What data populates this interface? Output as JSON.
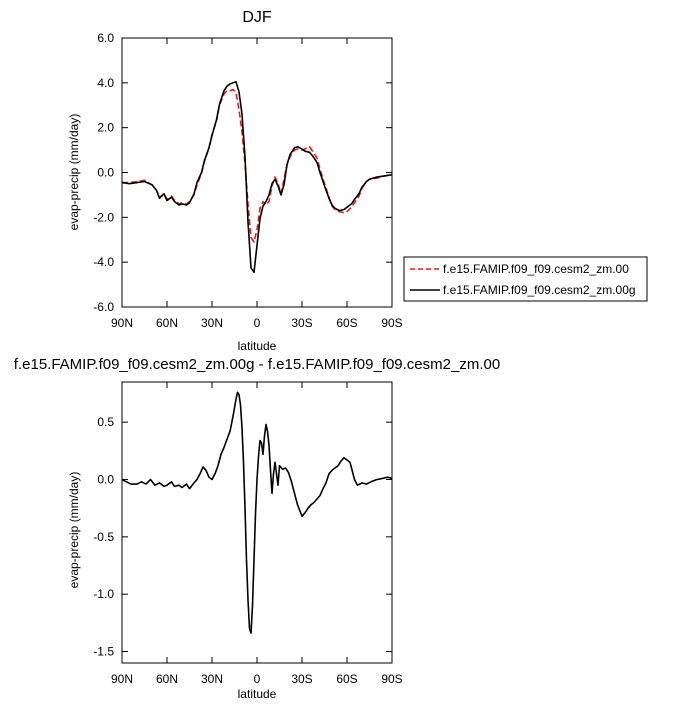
{
  "chart_data": [
    {
      "type": "line",
      "title": "DJF",
      "xlabel": "latitude",
      "ylabel": "evap-precip (mm/day)",
      "xlim": [
        90,
        -90
      ],
      "ylim": [
        -6,
        6
      ],
      "x_ticks": [
        90,
        60,
        30,
        0,
        -30,
        -60,
        -90
      ],
      "x_tick_labels": [
        "90N",
        "60N",
        "30N",
        "0",
        "30S",
        "60S",
        "90S"
      ],
      "y_ticks": [
        -6,
        -4,
        -2,
        0,
        2,
        4,
        6
      ],
      "y_tick_labels": [
        "-6.0",
        "-4.0",
        "-2.0",
        "0.0",
        "2.0",
        "4.0",
        "6.0"
      ],
      "legend": "right",
      "series": [
        {
          "name": "f.e15.FAMIP.f09_f09.cesm2_zm.00",
          "color": "#e41a1c",
          "style": "dashed",
          "x": [
            90,
            85,
            80,
            75,
            70,
            67,
            65,
            62,
            60,
            57,
            55,
            52,
            50,
            47,
            45,
            42,
            40,
            37,
            35,
            32,
            30,
            27,
            25,
            22,
            20,
            18,
            16,
            14,
            12,
            10,
            8,
            6,
            4,
            2,
            0,
            -2,
            -4,
            -6,
            -8,
            -10,
            -12,
            -14,
            -16,
            -18,
            -20,
            -22,
            -25,
            -27,
            -30,
            -32,
            -35,
            -37,
            -40,
            -42,
            -45,
            -48,
            -50,
            -52,
            -55,
            -58,
            -60,
            -63,
            -65,
            -68,
            -70,
            -73,
            -75,
            -80,
            -85,
            -90
          ],
          "y": [
            -0.45,
            -0.45,
            -0.4,
            -0.35,
            -0.55,
            -0.8,
            -1.1,
            -0.95,
            -1.2,
            -1.05,
            -1.25,
            -1.4,
            -1.35,
            -1.4,
            -1.3,
            -1.0,
            -0.55,
            -0.05,
            0.5,
            1.1,
            1.7,
            2.3,
            3.0,
            3.5,
            3.65,
            3.65,
            3.7,
            3.55,
            2.8,
            1.8,
            0.4,
            -1.4,
            -2.9,
            -3.1,
            -2.55,
            -1.6,
            -1.3,
            -1.45,
            -1.3,
            -0.6,
            -0.2,
            -0.5,
            -0.95,
            -0.3,
            0.35,
            0.7,
            1.0,
            1.05,
            1.0,
            1.05,
            1.15,
            0.95,
            0.65,
            0.15,
            -0.5,
            -1.1,
            -1.5,
            -1.65,
            -1.75,
            -1.8,
            -1.75,
            -1.55,
            -1.35,
            -1.05,
            -0.7,
            -0.4,
            -0.3,
            -0.25,
            -0.15,
            -0.1
          ]
        },
        {
          "name": "f.e15.FAMIP.f09_f09.cesm2_zm.00g",
          "color": "#000000",
          "style": "solid",
          "x": [
            90,
            85,
            80,
            75,
            70,
            67,
            65,
            62,
            60,
            57,
            55,
            52,
            50,
            47,
            45,
            42,
            40,
            37,
            35,
            32,
            30,
            27,
            25,
            22,
            20,
            18,
            16,
            14,
            12,
            10,
            8,
            6,
            4,
            2,
            0,
            -2,
            -4,
            -6,
            -8,
            -10,
            -12,
            -14,
            -16,
            -18,
            -20,
            -22,
            -25,
            -27,
            -30,
            -32,
            -35,
            -37,
            -40,
            -42,
            -45,
            -48,
            -50,
            -52,
            -55,
            -58,
            -60,
            -63,
            -65,
            -68,
            -70,
            -73,
            -75,
            -80,
            -85,
            -90
          ],
          "y": [
            -0.45,
            -0.5,
            -0.45,
            -0.4,
            -0.55,
            -0.8,
            -1.15,
            -0.95,
            -1.25,
            -1.1,
            -1.3,
            -1.45,
            -1.4,
            -1.45,
            -1.35,
            -0.95,
            -0.45,
            0.0,
            0.55,
            1.1,
            1.65,
            2.35,
            3.05,
            3.65,
            3.85,
            3.95,
            4.0,
            4.05,
            3.6,
            2.6,
            0.7,
            -2.2,
            -4.25,
            -4.45,
            -3.25,
            -2.05,
            -1.5,
            -1.3,
            -1.0,
            -0.5,
            -0.3,
            -0.6,
            -1.0,
            -0.55,
            0.35,
            0.8,
            1.1,
            1.15,
            1.05,
            0.95,
            0.9,
            0.75,
            0.45,
            0.0,
            -0.6,
            -1.15,
            -1.45,
            -1.6,
            -1.7,
            -1.65,
            -1.55,
            -1.4,
            -1.2,
            -0.95,
            -0.65,
            -0.4,
            -0.3,
            -0.2,
            -0.15,
            -0.1
          ]
        }
      ]
    },
    {
      "type": "line",
      "title": "f.e15.FAMIP.f09_f09.cesm2_zm.00g - f.e15.FAMIP.f09_f09.cesm2_zm.00",
      "xlabel": "latitude",
      "ylabel": "evap-precip (mm/day)",
      "xlim": [
        90,
        -90
      ],
      "ylim": [
        -1.6,
        0.85
      ],
      "x_ticks": [
        90,
        60,
        30,
        0,
        -30,
        -60,
        -90
      ],
      "x_tick_labels": [
        "90N",
        "60N",
        "30N",
        "0",
        "30S",
        "60S",
        "90S"
      ],
      "y_ticks": [
        -1.5,
        -1.0,
        -0.5,
        0.0,
        0.5
      ],
      "y_tick_labels": [
        "-1.5",
        "-1.0",
        "-0.5",
        "0.0",
        "0.5"
      ],
      "series": [
        {
          "color": "#000000",
          "style": "solid",
          "x": [
            90,
            87,
            84,
            80,
            77,
            74,
            71,
            68,
            65,
            62,
            60,
            57,
            55,
            52,
            50,
            47,
            45,
            42,
            40,
            38,
            36,
            34,
            32,
            30,
            28,
            26,
            24,
            22,
            20,
            18,
            16,
            14,
            13,
            12,
            11,
            10,
            9,
            8,
            7,
            6,
            5,
            4,
            3,
            2,
            1,
            0,
            -1,
            -2,
            -3,
            -4,
            -5,
            -6,
            -7,
            -8,
            -9,
            -10,
            -11,
            -12,
            -13,
            -14,
            -15,
            -17,
            -19,
            -21,
            -23,
            -25,
            -27,
            -30,
            -32,
            -34,
            -36,
            -38,
            -40,
            -42,
            -44,
            -46,
            -48,
            -50,
            -52,
            -54,
            -56,
            -58,
            -60,
            -62,
            -63,
            -65,
            -67,
            -70,
            -73,
            -76,
            -80,
            -84,
            -87,
            -90
          ],
          "y": [
            0.0,
            -0.02,
            -0.04,
            -0.04,
            -0.02,
            -0.04,
            0.0,
            -0.05,
            -0.03,
            -0.06,
            -0.05,
            -0.02,
            -0.06,
            -0.05,
            -0.07,
            -0.04,
            -0.08,
            -0.03,
            0.0,
            0.05,
            0.11,
            0.08,
            0.02,
            0.0,
            0.05,
            0.12,
            0.22,
            0.28,
            0.35,
            0.42,
            0.55,
            0.7,
            0.76,
            0.74,
            0.65,
            0.45,
            0.15,
            -0.25,
            -0.7,
            -1.05,
            -1.3,
            -1.34,
            -1.1,
            -0.7,
            -0.3,
            0.0,
            0.2,
            0.34,
            0.32,
            0.22,
            0.38,
            0.48,
            0.42,
            0.3,
            0.08,
            -0.12,
            0.05,
            0.15,
            0.05,
            -0.05,
            0.12,
            0.09,
            0.1,
            0.06,
            -0.02,
            -0.12,
            -0.22,
            -0.32,
            -0.29,
            -0.25,
            -0.22,
            -0.2,
            -0.17,
            -0.14,
            -0.08,
            -0.03,
            0.05,
            0.08,
            0.1,
            0.12,
            0.16,
            0.19,
            0.17,
            0.15,
            0.1,
            0.0,
            -0.05,
            -0.03,
            -0.04,
            -0.02,
            0.0,
            0.01,
            0.02,
            0.01
          ]
        }
      ]
    }
  ]
}
